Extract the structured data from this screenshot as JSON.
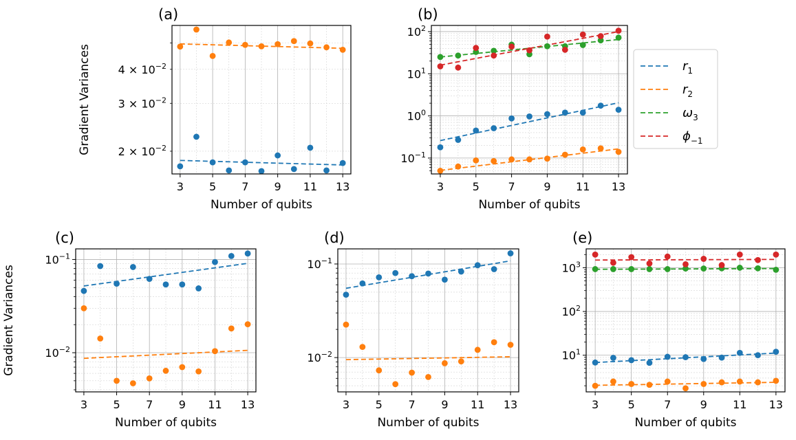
{
  "colors": {
    "r1": "#1f77b4",
    "r2": "#ff7f0e",
    "w3": "#2ca02c",
    "phi": "#d62728"
  },
  "legend": {
    "entries": [
      {
        "key": "r1",
        "base": "r",
        "sub": "1"
      },
      {
        "key": "r2",
        "base": "r",
        "sub": "2"
      },
      {
        "key": "w3",
        "base": "ω",
        "sub": "3"
      },
      {
        "key": "phi",
        "base": "ϕ",
        "sub": "−1"
      }
    ]
  },
  "chart_data": [
    {
      "panel": "(a)",
      "type": "scatter",
      "yscale": "log",
      "xlabel": "Number of qubits",
      "ylabel": "Gradient Variances",
      "xlim": [
        2.5,
        13.5
      ],
      "ylim": [
        0.0165,
        0.058
      ],
      "xticks": [
        3,
        5,
        7,
        9,
        11,
        13
      ],
      "yticks": [
        {
          "value": 0.02,
          "base": "2 × 10",
          "exp": "−2"
        },
        {
          "value": 0.03,
          "base": "3 × 10",
          "exp": "−2"
        },
        {
          "value": 0.04,
          "base": "4 × 10",
          "exp": "−2"
        }
      ],
      "series": [
        {
          "key": "r1",
          "x": [
            3,
            4,
            5,
            6,
            7,
            8,
            9,
            10,
            11,
            12,
            13
          ],
          "values": [
            0.0176,
            0.0226,
            0.0182,
            0.017,
            0.0182,
            0.0169,
            0.0193,
            0.0172,
            0.0206,
            0.017,
            0.0181
          ],
          "fit": [
            [
              3,
              0.0185
            ],
            [
              13,
              0.0178
            ]
          ]
        },
        {
          "key": "r2",
          "x": [
            3,
            4,
            5,
            6,
            7,
            8,
            9,
            10,
            11,
            12,
            13
          ],
          "values": [
            0.0485,
            0.056,
            0.0448,
            0.0502,
            0.0492,
            0.0486,
            0.0495,
            0.0508,
            0.0498,
            0.0482,
            0.0472
          ],
          "fit": [
            [
              3,
              0.0496
            ],
            [
              13,
              0.0478
            ]
          ]
        }
      ]
    },
    {
      "panel": "(b)",
      "type": "scatter",
      "yscale": "log",
      "xlabel": "Number of qubits",
      "ylabel": "",
      "xlim": [
        2.5,
        13.5
      ],
      "ylim": [
        0.042,
        140
      ],
      "xticks": [
        3,
        5,
        7,
        9,
        11,
        13
      ],
      "yticks": [
        {
          "value": 0.1,
          "base": "10",
          "exp": "−1"
        },
        {
          "value": 1,
          "base": "10",
          "exp": "0"
        },
        {
          "value": 10,
          "base": "10",
          "exp": "1"
        },
        {
          "value": 100,
          "base": "10",
          "exp": "2"
        }
      ],
      "series": [
        {
          "key": "r1",
          "x": [
            3,
            4,
            5,
            6,
            7,
            8,
            9,
            10,
            11,
            12,
            13
          ],
          "values": [
            0.18,
            0.27,
            0.45,
            0.51,
            0.87,
            0.97,
            1.1,
            1.2,
            1.2,
            1.75,
            1.4
          ],
          "fit": [
            [
              3,
              0.26
            ],
            [
              13,
              2.05
            ]
          ]
        },
        {
          "key": "r2",
          "x": [
            3,
            4,
            5,
            6,
            7,
            8,
            9,
            10,
            11,
            12,
            13
          ],
          "values": [
            0.05,
            0.063,
            0.088,
            0.085,
            0.093,
            0.093,
            0.097,
            0.12,
            0.16,
            0.17,
            0.14
          ],
          "fit": [
            [
              3,
              0.051
            ],
            [
              13,
              0.165
            ]
          ]
        },
        {
          "key": "w3",
          "x": [
            3,
            4,
            5,
            6,
            7,
            8,
            9,
            10,
            11,
            12,
            13
          ],
          "values": [
            25,
            27,
            33,
            35,
            49,
            29,
            45,
            45,
            48,
            62,
            72
          ],
          "fit": [
            [
              3,
              25
            ],
            [
              13,
              65
            ]
          ]
        },
        {
          "key": "phi",
          "x": [
            3,
            4,
            5,
            6,
            7,
            8,
            9,
            10,
            11,
            12,
            13
          ],
          "values": [
            15,
            14,
            41,
            27,
            44,
            36,
            76,
            37,
            85,
            78,
            105
          ],
          "fit": [
            [
              3,
              16
            ],
            [
              13,
              100
            ]
          ]
        }
      ]
    },
    {
      "panel": "(c)",
      "type": "scatter",
      "yscale": "log",
      "xlabel": "Number of qubits",
      "ylabel": "Gradient Variances",
      "xlim": [
        2.5,
        13.5
      ],
      "ylim": [
        0.0038,
        0.13
      ],
      "xticks": [
        3,
        5,
        7,
        9,
        11,
        13
      ],
      "yticks": [
        {
          "value": 0.01,
          "base": "10",
          "exp": "−2"
        },
        {
          "value": 0.1,
          "base": "10",
          "exp": "−1"
        }
      ],
      "series": [
        {
          "key": "r1",
          "x": [
            3,
            4,
            5,
            6,
            7,
            8,
            9,
            10,
            11,
            12,
            13
          ],
          "values": [
            0.046,
            0.085,
            0.055,
            0.083,
            0.062,
            0.054,
            0.054,
            0.049,
            0.094,
            0.109,
            0.116
          ],
          "fit": [
            [
              3,
              0.052
            ],
            [
              13,
              0.091
            ]
          ]
        },
        {
          "key": "r2",
          "x": [
            3,
            4,
            5,
            6,
            7,
            8,
            9,
            10,
            11,
            12,
            13
          ],
          "values": [
            0.03,
            0.0142,
            0.005,
            0.0047,
            0.0053,
            0.0064,
            0.007,
            0.0063,
            0.0104,
            0.0182,
            0.0202
          ],
          "fit": [
            [
              3,
              0.0087
            ],
            [
              13,
              0.0106
            ]
          ]
        }
      ]
    },
    {
      "panel": "(d)",
      "type": "scatter",
      "yscale": "log",
      "xlabel": "Number of qubits",
      "ylabel": "",
      "xlim": [
        2.5,
        13.5
      ],
      "ylim": [
        0.0043,
        0.145
      ],
      "xticks": [
        3,
        5,
        7,
        9,
        11,
        13
      ],
      "yticks": [
        {
          "value": 0.01,
          "base": "10",
          "exp": "−2"
        },
        {
          "value": 0.1,
          "base": "10",
          "exp": "−1"
        }
      ],
      "series": [
        {
          "key": "r1",
          "x": [
            3,
            4,
            5,
            6,
            7,
            8,
            9,
            10,
            11,
            12,
            13
          ],
          "values": [
            0.047,
            0.062,
            0.072,
            0.08,
            0.074,
            0.079,
            0.068,
            0.083,
            0.097,
            0.088,
            0.13
          ],
          "fit": [
            [
              3,
              0.055
            ],
            [
              13,
              0.108
            ]
          ]
        },
        {
          "key": "r2",
          "x": [
            3,
            4,
            5,
            6,
            7,
            8,
            9,
            10,
            11,
            12,
            13
          ],
          "values": [
            0.0225,
            0.013,
            0.0073,
            0.0052,
            0.0069,
            0.0062,
            0.0087,
            0.0091,
            0.0121,
            0.0146,
            0.0137
          ],
          "fit": [
            [
              3,
              0.0095
            ],
            [
              13,
              0.0102
            ]
          ]
        }
      ]
    },
    {
      "panel": "(e)",
      "type": "scatter",
      "yscale": "log",
      "xlabel": "Number of qubits",
      "ylabel": "",
      "xlim": [
        2.5,
        13.5
      ],
      "ylim": [
        1.45,
        2700
      ],
      "xticks": [
        3,
        5,
        7,
        9,
        11,
        13
      ],
      "yticks": [
        {
          "value": 10,
          "base": "10",
          "exp": "1"
        },
        {
          "value": 100,
          "base": "10",
          "exp": "2"
        },
        {
          "value": 1000,
          "base": "10",
          "exp": "3"
        }
      ],
      "series": [
        {
          "key": "r1",
          "x": [
            3,
            4,
            5,
            6,
            7,
            8,
            9,
            10,
            11,
            12,
            13
          ],
          "values": [
            6.8,
            8.7,
            7.7,
            6.7,
            9.2,
            9.0,
            8.2,
            8.8,
            11.3,
            10.0,
            12.0
          ],
          "fit": [
            [
              3,
              6.8
            ],
            [
              13,
              11.2
            ]
          ]
        },
        {
          "key": "r2",
          "x": [
            3,
            4,
            5,
            6,
            7,
            8,
            9,
            10,
            11,
            12,
            13
          ],
          "values": [
            2.0,
            2.5,
            2.2,
            2.1,
            2.5,
            1.75,
            2.2,
            2.4,
            2.5,
            2.4,
            2.6
          ],
          "fit": [
            [
              3,
              2.05
            ],
            [
              13,
              2.4
            ]
          ]
        },
        {
          "key": "w3",
          "x": [
            3,
            4,
            5,
            6,
            7,
            8,
            9,
            10,
            11,
            12,
            13
          ],
          "values": [
            930,
            930,
            930,
            930,
            930,
            960,
            960,
            970,
            1000,
            970,
            900
          ],
          "fit": [
            [
              3,
              920
            ],
            [
              13,
              960
            ]
          ]
        },
        {
          "key": "phi",
          "x": [
            3,
            4,
            5,
            6,
            7,
            8,
            9,
            10,
            11,
            12,
            13
          ],
          "values": [
            2000,
            1300,
            1750,
            1250,
            1800,
            1200,
            1600,
            1150,
            2000,
            1500,
            2000
          ],
          "fit": [
            [
              3,
              1500
            ],
            [
              13,
              1550
            ]
          ]
        }
      ]
    }
  ]
}
